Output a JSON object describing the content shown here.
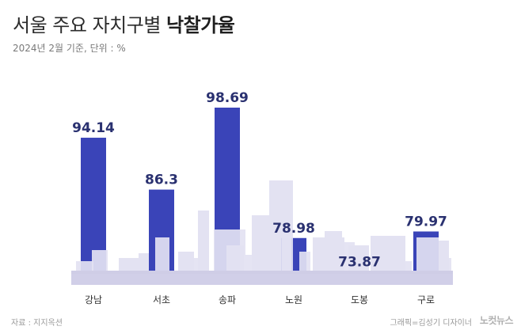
{
  "title_prefix": "서울 주요 자치구별",
  "title_emphasis": "낙찰가율",
  "subtitle": "2024년 2월 기준, 단위 : %",
  "source": "자료 : 지지옥션",
  "credit": "그래픽=김성기 디자이너",
  "logo": "노컷뉴스",
  "colors": {
    "bar": "#3a44b8",
    "skyline": "#e3e2f2",
    "skyline_dark": "#d2d1ea",
    "ground": "#cfcde6",
    "value_text": "#2a3170"
  },
  "chart_data": {
    "type": "bar",
    "categories": [
      "강남",
      "서초",
      "송파",
      "노원",
      "도봉",
      "구로"
    ],
    "values": [
      94.14,
      86.3,
      98.69,
      78.98,
      73.87,
      79.97
    ],
    "value_labels": [
      "94.14",
      "86.3",
      "98.69",
      "78.98",
      "73.87",
      "79.97"
    ],
    "unit": "%",
    "ylim": [
      0,
      100
    ],
    "grid": false,
    "legend": "none"
  }
}
